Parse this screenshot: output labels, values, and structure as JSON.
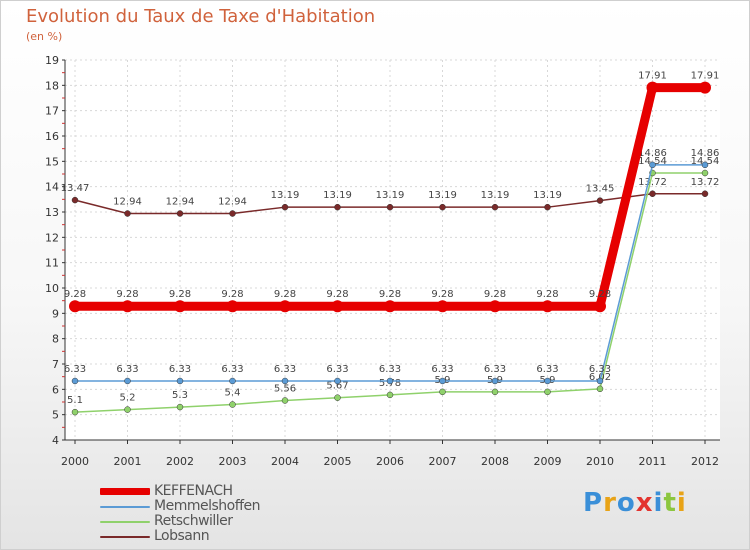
{
  "header": {
    "title": "Evolution du Taux de Taxe d'Habitation",
    "unit": "(en %)"
  },
  "chart_data": {
    "type": "line",
    "title": "Evolution du Taux de Taxe d'Habitation",
    "ylabel": "(en %)",
    "xlabel": "",
    "categories": [
      "2000",
      "2001",
      "2002",
      "2003",
      "2004",
      "2005",
      "2006",
      "2007",
      "2008",
      "2009",
      "2010",
      "2011",
      "2012"
    ],
    "ylim": [
      4,
      19
    ],
    "yticks": [
      "4",
      "5",
      "6",
      "7",
      "8",
      "9",
      "10",
      "11",
      "12",
      "13",
      "14",
      "15",
      "16",
      "17",
      "18",
      "19"
    ],
    "grid": true,
    "legend_position": "bottom-left",
    "series": [
      {
        "name": "Lobsann",
        "color": "#7a2a2a",
        "values": [
          13.47,
          12.94,
          12.94,
          12.94,
          13.19,
          13.19,
          13.19,
          13.19,
          13.19,
          13.19,
          13.45,
          13.72,
          13.72
        ],
        "labels": [
          "13.47",
          "12.94",
          "12.94",
          "12.94",
          "13.19",
          "13.19",
          "13.19",
          "13.19",
          "13.19",
          "13.19",
          "13.45",
          "13.72",
          "13.72"
        ]
      },
      {
        "name": "Retschwiller",
        "color": "#8fd16b",
        "values": [
          5.1,
          5.2,
          5.3,
          5.4,
          5.56,
          5.67,
          5.78,
          5.9,
          5.9,
          5.9,
          6.02,
          14.54,
          14.54
        ],
        "labels": [
          "5.1",
          "5.2",
          "5.3",
          "5.4",
          "5.56",
          "5.67",
          "5.78",
          "5.9",
          "5.9",
          "5.9",
          "6.02",
          "14.54",
          "14.54"
        ]
      },
      {
        "name": "Memmelshoffen",
        "color": "#5b9bd5",
        "values": [
          6.33,
          6.33,
          6.33,
          6.33,
          6.33,
          6.33,
          6.33,
          6.33,
          6.33,
          6.33,
          6.33,
          14.86,
          14.86
        ],
        "labels": [
          "6.33",
          "6.33",
          "6.33",
          "6.33",
          "6.33",
          "6.33",
          "6.33",
          "6.33",
          "6.33",
          "6.33",
          "6.33",
          "14.86",
          "14.86"
        ]
      },
      {
        "name": "KEFFENACH",
        "color": "#e60000",
        "values": [
          9.28,
          9.28,
          9.28,
          9.28,
          9.28,
          9.28,
          9.28,
          9.28,
          9.28,
          9.28,
          9.28,
          17.91,
          17.91
        ],
        "labels": [
          "9.28",
          "9.28",
          "9.28",
          "9.28",
          "9.28",
          "9.28",
          "9.28",
          "9.28",
          "9.28",
          "9.28",
          "9.28",
          "17.91",
          "17.91"
        ]
      }
    ]
  },
  "legend": [
    {
      "label": "KEFFENACH",
      "color": "#e60000"
    },
    {
      "label": "Memmelshoffen",
      "color": "#5b9bd5"
    },
    {
      "label": "Retschwiller",
      "color": "#8fd16b"
    },
    {
      "label": "Lobsann",
      "color": "#7a2a2a"
    }
  ],
  "logo": {
    "letters": [
      "P",
      "r",
      "o",
      "x",
      "i",
      "t",
      "i"
    ],
    "colors": [
      "#3a8fd8",
      "#e8a317",
      "#3a8fd8",
      "#e3342f",
      "#3a8fd8",
      "#8cc63f",
      "#e8a317"
    ]
  }
}
